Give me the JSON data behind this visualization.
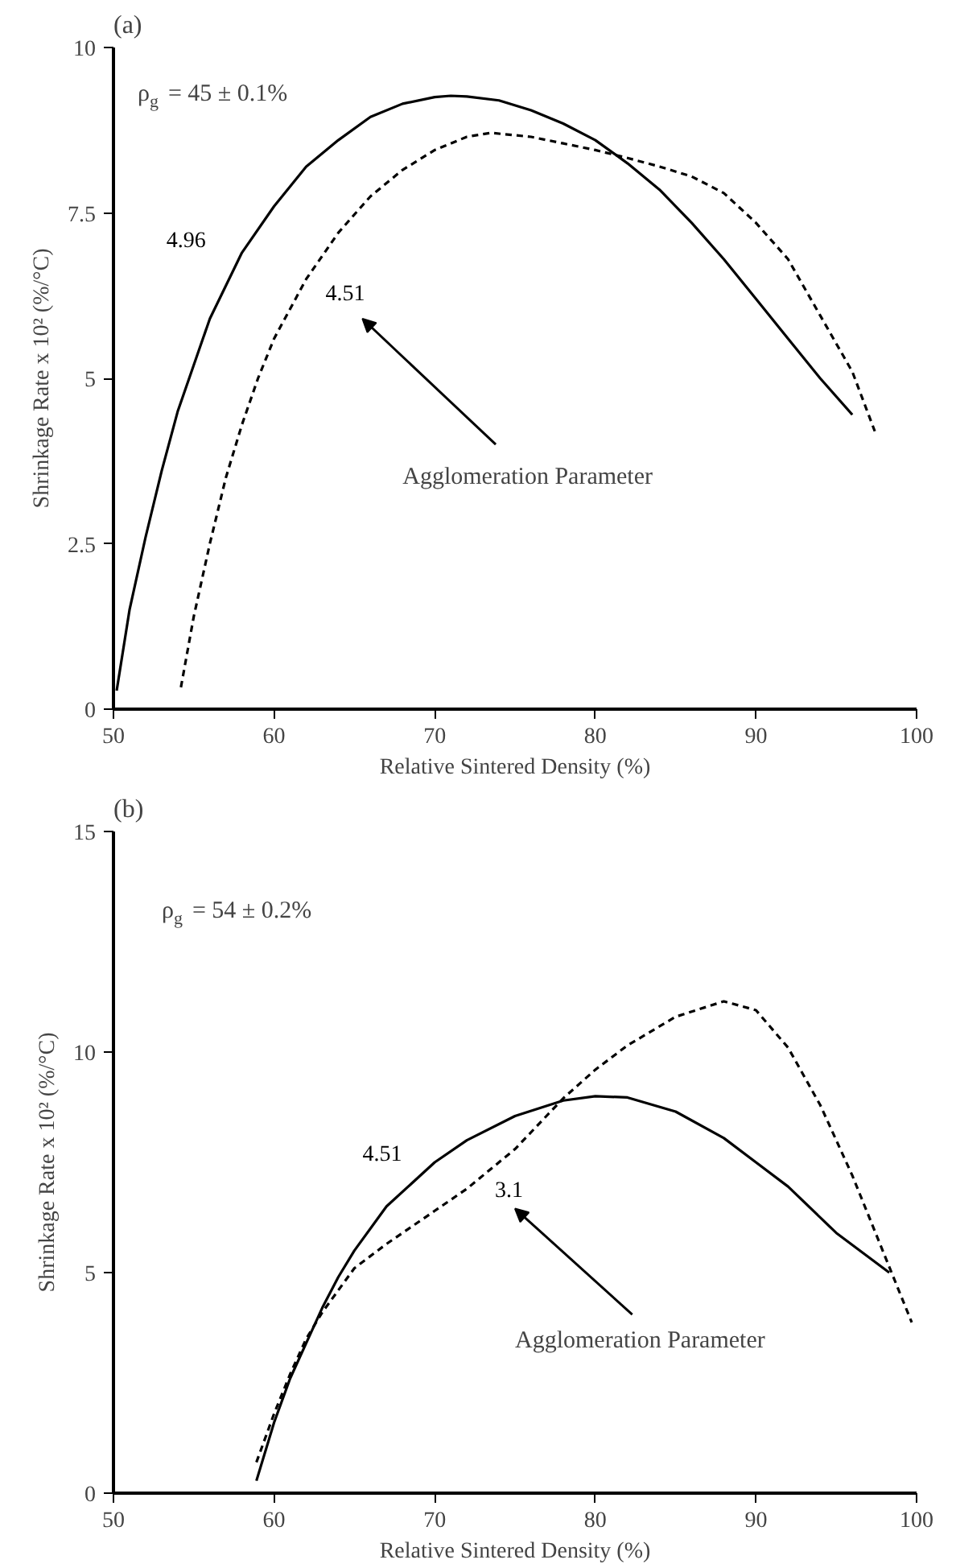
{
  "chart_data": [
    {
      "type": "line",
      "title": "(a)",
      "xlabel": "Relative Sintered Density (%)",
      "ylabel": "Shrinkage Rate x 10² (%/°C)",
      "xlim": [
        50,
        100
      ],
      "ylim": [
        0,
        10
      ],
      "xticks": [
        50,
        60,
        70,
        80,
        90,
        100
      ],
      "yticks": [
        0,
        2.5,
        5,
        7.5,
        10
      ],
      "grid": false,
      "marker": "none",
      "annotations": [
        "ρ$_{g}$ = 45 ± 0.1%",
        "Agglomeration Parameter"
      ],
      "series": [
        {
          "name": "4.96",
          "color": "#000000",
          "line_style": "solid",
          "x": [
            50.2,
            51,
            52,
            53,
            54,
            55,
            56,
            58,
            60,
            62,
            64,
            66,
            68,
            70,
            71,
            72,
            74,
            76,
            78,
            80,
            82,
            84,
            86,
            88,
            90,
            92,
            94,
            96
          ],
          "values": [
            0.28,
            1.5,
            2.6,
            3.6,
            4.5,
            5.2,
            5.9,
            6.9,
            7.6,
            8.2,
            8.6,
            8.95,
            9.15,
            9.25,
            9.27,
            9.26,
            9.2,
            9.05,
            8.85,
            8.6,
            8.25,
            7.85,
            7.35,
            6.8,
            6.2,
            5.6,
            5.0,
            4.45
          ]
        },
        {
          "name": "4.51",
          "color": "#000000",
          "line_style": "dashed",
          "x": [
            54.2,
            55,
            56,
            57,
            58,
            59,
            60,
            62,
            64,
            66,
            68,
            70,
            72,
            73.5,
            76,
            78,
            80,
            82,
            84,
            86,
            88,
            90,
            92,
            94,
            96,
            97.4
          ],
          "values": [
            0.33,
            1.4,
            2.5,
            3.5,
            4.3,
            5.0,
            5.6,
            6.5,
            7.2,
            7.75,
            8.15,
            8.45,
            8.65,
            8.71,
            8.65,
            8.55,
            8.45,
            8.33,
            8.2,
            8.05,
            7.8,
            7.35,
            6.8,
            5.95,
            5.1,
            4.2
          ]
        }
      ]
    },
    {
      "type": "line",
      "title": "(b)",
      "xlabel": "Relative Sintered Density (%)",
      "ylabel": "Shrinkage Rate x 10² (%/°C)",
      "xlim": [
        50,
        100
      ],
      "ylim": [
        0,
        15
      ],
      "xticks": [
        50,
        60,
        70,
        80,
        90,
        100
      ],
      "yticks": [
        0,
        5,
        10,
        15
      ],
      "grid": false,
      "marker": "none",
      "annotations": [
        "ρ$_{g}$ = 54 ± 0.2%",
        "Agglomeration Parameter"
      ],
      "series": [
        {
          "name": "4.51",
          "color": "#000000",
          "line_style": "solid",
          "x": [
            58.9,
            60,
            61,
            62,
            63,
            64,
            65,
            67,
            70,
            72,
            75,
            78,
            80,
            82,
            85,
            88,
            90,
            92,
            95,
            98.3
          ],
          "values": [
            0.28,
            1.6,
            2.6,
            3.4,
            4.2,
            4.9,
            5.5,
            6.5,
            7.5,
            8.0,
            8.55,
            8.9,
            9.0,
            8.97,
            8.65,
            8.05,
            7.5,
            6.95,
            5.9,
            5.0
          ]
        },
        {
          "name": "3.1",
          "color": "#000000",
          "line_style": "dashed",
          "x": [
            58.9,
            60,
            61,
            62,
            63,
            65,
            67,
            70,
            72,
            75,
            78,
            80,
            82,
            85,
            88,
            90,
            92,
            94,
            96,
            98,
            99.7
          ],
          "values": [
            0.7,
            1.8,
            2.7,
            3.5,
            4.1,
            5.1,
            5.65,
            6.4,
            6.9,
            7.8,
            8.95,
            9.6,
            10.15,
            10.8,
            11.15,
            10.95,
            10.1,
            8.8,
            7.2,
            5.4,
            3.87
          ]
        }
      ]
    }
  ]
}
